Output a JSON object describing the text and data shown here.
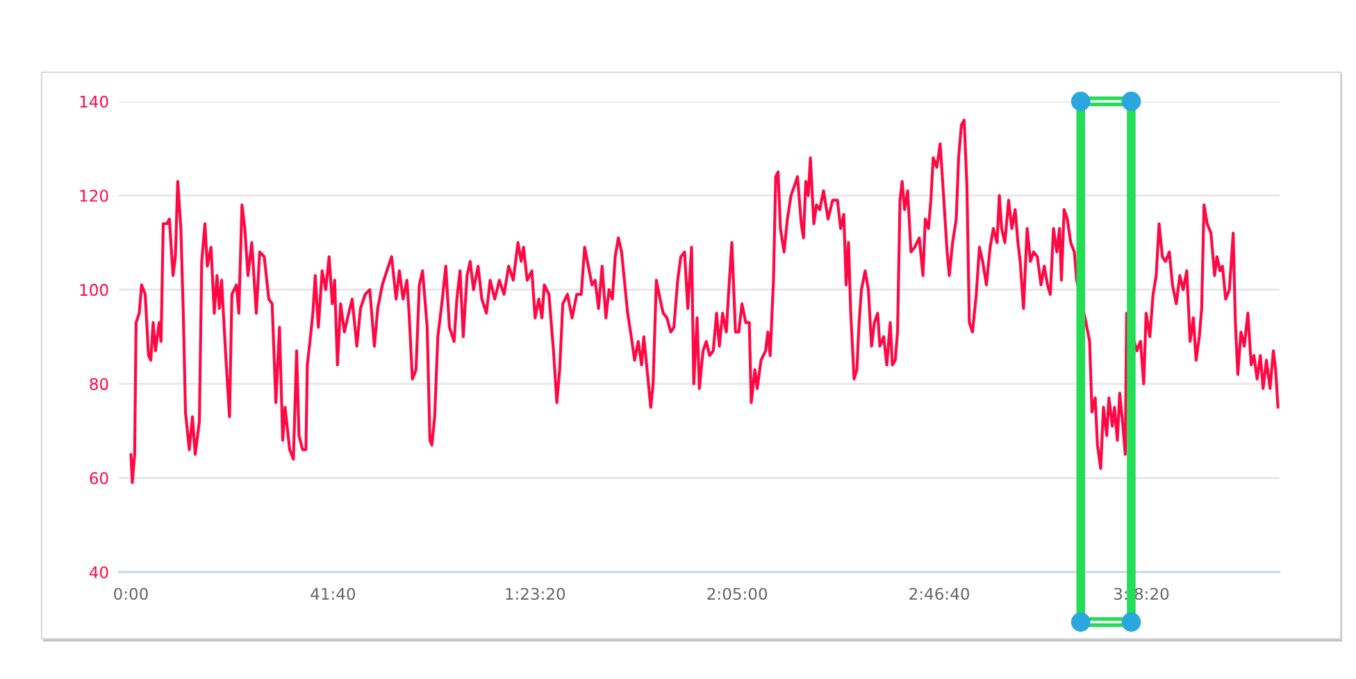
{
  "chart_data": {
    "type": "line",
    "x": [
      0,
      17,
      46,
      64,
      103,
      132,
      177,
      218,
      246,
      275,
      304,
      349,
      373,
      400,
      447,
      476,
      521,
      550,
      579,
      618,
      648,
      675,
      722,
      761,
      795,
      847,
      876,
      916,
      945,
      991,
      1031,
      1065,
      1094,
      1122,
      1173,
      1220,
      1249,
      1306,
      1335,
      1374,
      1409,
      1448,
      1495,
      1551,
      1593,
      1649,
      1706,
      1747,
      1793,
      1838,
      1878,
      1907,
      1964,
      2010,
      2050,
      2079,
      2125,
      2165,
      2182,
      2221,
      2251,
      2280,
      2319,
      2366,
      2410,
      2452,
      2491,
      2520,
      2555,
      2594,
      2641,
      2680,
      2737,
      2795,
      2840,
      2898,
      2955,
      3012,
      3053,
      3110,
      3166,
      3225,
      3281,
      3321,
      3367,
      3414,
      3441,
      3482,
      3527,
      3568,
      3608,
      3665,
      3699,
      3723,
      3758,
      3797,
      3853,
      3895,
      3940,
      3998,
      4032,
      4072,
      4111,
      4158,
      4197,
      4238,
      4295,
      4341,
      4398,
      4444,
      4501,
      4558,
      4616,
      4673,
      4730,
      4788,
      4828,
      4857,
      4902,
      4960,
      5000,
      5046,
      5085,
      5114,
      5171,
      5228,
      5269,
      5304,
      5343,
      5400,
      5458,
      5515,
      5571,
      5613,
      5704,
      5743,
      5785,
      5829,
      5876,
      5915,
      5956,
      5991,
      6030,
      6070,
      6116,
      6145,
      6190,
      6231,
      6276,
      6317,
      6345,
      6391,
      6431,
      6460,
      6500,
      6546,
      6585,
      6631,
      6678,
      6717,
      6764,
      6803,
      6849,
      6889,
      6936,
      6963,
      7004,
      7032,
      7078,
      7118,
      7159,
      7204,
      7245,
      7280,
      7319,
      7366,
      7393,
      7434,
      7479,
      7520,
      7559,
      7606,
      7650,
      7674,
      7719,
      7748,
      7795,
      7851,
      7880,
      7908,
      7949,
      7977,
      8006,
      8035,
      8080,
      8121,
      8166,
      8207,
      8246,
      8293,
      8320,
      8349,
      8379,
      8406,
      8448,
      8481,
      8521,
      8568,
      8624,
      8681,
      8740,
      8780,
      8819,
      8848,
      8877,
      8905,
      8946,
      8981,
      9008,
      9037,
      9083,
      9123,
      9162,
      9197,
      9238,
      9265,
      9312,
      9351,
      9393,
      9420,
      9455,
      9484,
      9514,
      9541,
      9571,
      9609,
      9650,
      9695,
      9753,
      9798,
      9827,
      9866,
      9896,
      9925,
      9970,
      10011,
      10038,
      10097,
      10124,
      10165,
      10210,
      10239,
      10274,
      10308,
      10342,
      10372,
      10411,
      10458,
      10497,
      10537,
      10583,
      10629,
      10669,
      10715,
      10743,
      10772,
      10811,
      10858,
      10897,
      10939,
      10973,
      11001,
      11042,
      11087,
      11128,
      11167,
      11213,
      11259,
      11299,
      11339,
      11373,
      11413,
      11454,
      11488,
      11511,
      11545,
      11584,
      11626,
      11671,
      11700,
      11815,
      11860,
      11889,
      11929,
      11957,
      11997,
      12031,
      12072,
      12099,
      12141,
      12168,
      12203,
      12232,
      12272,
      12301,
      12318,
      12443,
      12490,
      12529,
      12559,
      12605,
      12645,
      12684,
      12719,
      12760,
      12799,
      12846,
      12885,
      12932,
      12976,
      13017,
      13062,
      13103,
      13143,
      13177,
      13217,
      13246,
      13275,
      13315,
      13361,
      13406,
      13435,
      13474,
      13503,
      13543,
      13589,
      13636,
      13663,
      13693,
      13732,
      13773,
      13818,
      13859,
      13893,
      13932,
      13972,
      14006,
      14047,
      14092,
      14133,
      14161,
      14190
    ],
    "series": [
      {
        "color": "#ff0844",
        "values": [
          65,
          59,
          65,
          93,
          95,
          101,
          99,
          86,
          85,
          93,
          87,
          93,
          89,
          114,
          114,
          115,
          103,
          107,
          123,
          113,
          95,
          74,
          66,
          73,
          65,
          72,
          106,
          114,
          105,
          109,
          95,
          103,
          96,
          102,
          86,
          73,
          99,
          101,
          95,
          118,
          113,
          103,
          110,
          95,
          108,
          107,
          98,
          97,
          76,
          92,
          68,
          75,
          66,
          64,
          87,
          69,
          66,
          66,
          84,
          90,
          95,
          103,
          92,
          104,
          100,
          107,
          97,
          102,
          84,
          97,
          91,
          94,
          98,
          88,
          96,
          99,
          100,
          88,
          96,
          101,
          104,
          107,
          98,
          104,
          98,
          102,
          95,
          81,
          83,
          101,
          104,
          92,
          68,
          67,
          73,
          90,
          98,
          105,
          92,
          89,
          98,
          104,
          90,
          103,
          106,
          100,
          105,
          98,
          95,
          102,
          98,
          102,
          99,
          105,
          102,
          110,
          106,
          109,
          102,
          104,
          94,
          98,
          94,
          101,
          99,
          87,
          76,
          83,
          97,
          99,
          94,
          99,
          99,
          109,
          101,
          102,
          96,
          105,
          94,
          100,
          98,
          107,
          111,
          108,
          100,
          95,
          90,
          85,
          89,
          84,
          90,
          82,
          75,
          80,
          102,
          98,
          95,
          94,
          91,
          92,
          102,
          107,
          108,
          96,
          109,
          80,
          94,
          79,
          87,
          89,
          86,
          87,
          95,
          88,
          95,
          91,
          99,
          110,
          91,
          91,
          97,
          93,
          93,
          76,
          83,
          79,
          85,
          87,
          91,
          86,
          102,
          124,
          125,
          113,
          108,
          115,
          120,
          122,
          124,
          114,
          111,
          123,
          120,
          128,
          114,
          118,
          117,
          121,
          115,
          119,
          119,
          113,
          116,
          101,
          110,
          95,
          81,
          83,
          93,
          100,
          104,
          100,
          88,
          93,
          95,
          88,
          90,
          84,
          93,
          84,
          85,
          91,
          119,
          123,
          117,
          121,
          108,
          109,
          111,
          103,
          115,
          113,
          119,
          128,
          126,
          131,
          124,
          108,
          103,
          110,
          115,
          128,
          135,
          136,
          122,
          93,
          91,
          99,
          109,
          106,
          101,
          109,
          113,
          110,
          120,
          113,
          110,
          119,
          113,
          117,
          110,
          106,
          96,
          113,
          106,
          108,
          107,
          101,
          105,
          101,
          99,
          113,
          108,
          113,
          102,
          117,
          115,
          110,
          108,
          102,
          93,
          89,
          74,
          77,
          67,
          62,
          75,
          69,
          77,
          71,
          75,
          68,
          78,
          71,
          65,
          95,
          87,
          89,
          80,
          95,
          90,
          99,
          103,
          114,
          107,
          106,
          108,
          101,
          97,
          103,
          100,
          104,
          89,
          94,
          85,
          90,
          96,
          118,
          114,
          112,
          103,
          107,
          104,
          105,
          98,
          100,
          112,
          93,
          82,
          91,
          88,
          95,
          84,
          86,
          81,
          86,
          79,
          85,
          79,
          87,
          83,
          75
        ]
      }
    ],
    "xlim": [
      -150,
      14210
    ],
    "xticks": [
      {
        "value": 0,
        "label": "0:00"
      },
      {
        "value": 2500,
        "label": "41:40"
      },
      {
        "value": 5000,
        "label": "1:23:20"
      },
      {
        "value": 7500,
        "label": "2:05:00"
      },
      {
        "value": 10000,
        "label": "2:46:40"
      },
      {
        "value": 12500,
        "label": "3: 8:20"
      }
    ],
    "ylim": [
      40,
      140
    ],
    "yticks": [
      40,
      60,
      80,
      100,
      120,
      140
    ],
    "grid": "y",
    "ref_lines": [
      {
        "axis": "x",
        "value": 11750,
        "color": "#22dd55"
      },
      {
        "axis": "x",
        "value": 12375,
        "color": "#22dd55"
      }
    ]
  }
}
